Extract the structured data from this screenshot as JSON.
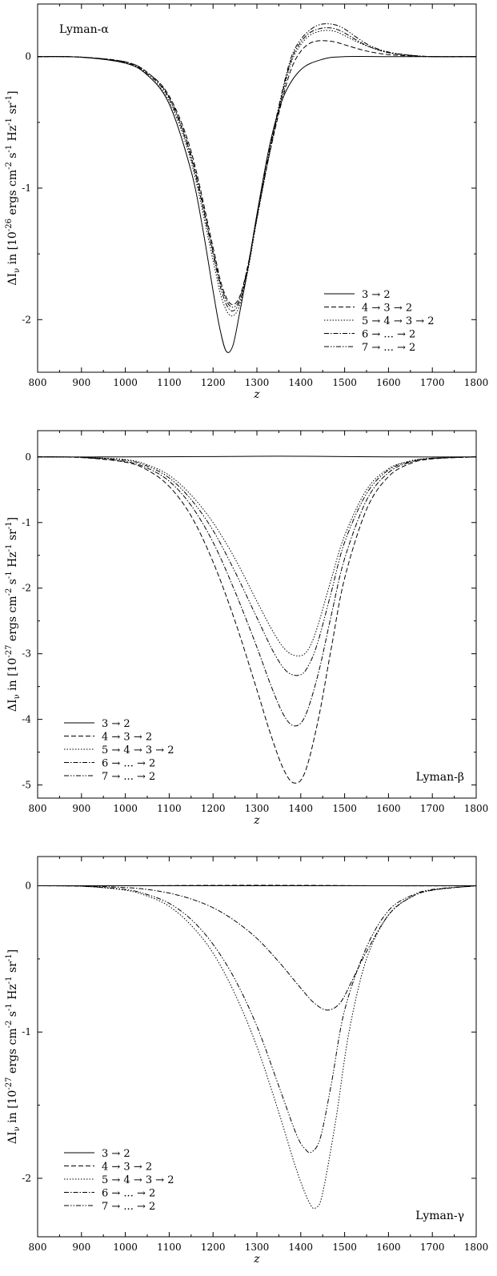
{
  "figure": {
    "background": "#ffffff",
    "ink": "#000000"
  },
  "chart_data": [
    {
      "type": "line",
      "title": "",
      "panel_label": "Lyman-α",
      "xlabel": "z",
      "ylabel": "ΔI_ν in [10^-26 ergs cm^-2 s^-1 Hz^-1 sr^-1]",
      "ylabel_parts": {
        "pre": "ΔI",
        "sub": "ν",
        "mid": " in [10",
        "exp": "-26",
        "units": " ergs cm",
        "e1": "-2",
        "s": " s",
        "e2": "-1",
        "hz": " Hz",
        "e3": "-1",
        "sr": " sr",
        "e4": "-1",
        "close": "]"
      },
      "xlim": [
        800,
        1800
      ],
      "ylim": [
        -2.4,
        0.4
      ],
      "xticks": [
        "800",
        "900",
        "1000",
        "1100",
        "1200",
        "1300",
        "1400",
        "1500",
        "1600",
        "1700",
        "1800"
      ],
      "yticks": [
        "0",
        "-1",
        "-2"
      ],
      "ytick_values": [
        0,
        -1,
        -2
      ],
      "legend_position": "bottom-right",
      "grid": false,
      "series": [
        {
          "name": "3 → 2",
          "x": [
            800,
            900,
            1000,
            1050,
            1100,
            1150,
            1175,
            1200,
            1215,
            1230,
            1245,
            1260,
            1280,
            1300,
            1330,
            1360,
            1400,
            1450,
            1500,
            1600,
            1700,
            1800
          ],
          "y": [
            0,
            -0.005,
            -0.05,
            -0.14,
            -0.36,
            -0.87,
            -1.28,
            -1.78,
            -2.06,
            -2.24,
            -2.2,
            -1.96,
            -1.6,
            -1.2,
            -0.66,
            -0.31,
            -0.1,
            -0.02,
            0,
            0,
            0,
            0
          ]
        },
        {
          "name": "4 → 3 → 2",
          "x": [
            800,
            900,
            1000,
            1050,
            1100,
            1150,
            1200,
            1220,
            1240,
            1260,
            1280,
            1300,
            1330,
            1360,
            1380,
            1400,
            1420,
            1440,
            1460,
            1480,
            1500,
            1530,
            1560,
            1600,
            1650,
            1700,
            1800
          ],
          "y": [
            0,
            -0.004,
            -0.04,
            -0.12,
            -0.3,
            -0.72,
            -1.45,
            -1.74,
            -1.88,
            -1.83,
            -1.58,
            -1.22,
            -0.72,
            -0.3,
            -0.08,
            0.04,
            0.1,
            0.12,
            0.12,
            0.11,
            0.09,
            0.06,
            0.035,
            0.015,
            0.005,
            0,
            0
          ]
        },
        {
          "name": "5 → 4 → 3 → 2",
          "x": [
            800,
            900,
            1000,
            1050,
            1100,
            1150,
            1200,
            1220,
            1240,
            1260,
            1280,
            1300,
            1330,
            1360,
            1380,
            1400,
            1420,
            1440,
            1460,
            1480,
            1500,
            1530,
            1560,
            1600,
            1650,
            1700,
            1800
          ],
          "y": [
            0,
            -0.005,
            -0.05,
            -0.14,
            -0.34,
            -0.8,
            -1.55,
            -1.84,
            -1.97,
            -1.9,
            -1.62,
            -1.24,
            -0.72,
            -0.27,
            -0.03,
            0.09,
            0.16,
            0.19,
            0.2,
            0.19,
            0.16,
            0.11,
            0.07,
            0.03,
            0.01,
            0,
            0
          ]
        },
        {
          "name": "6 → ... → 2",
          "x": [
            800,
            900,
            1000,
            1050,
            1100,
            1150,
            1200,
            1220,
            1240,
            1260,
            1280,
            1300,
            1330,
            1360,
            1380,
            1400,
            1420,
            1440,
            1460,
            1480,
            1500,
            1530,
            1560,
            1600,
            1650,
            1700,
            1800
          ],
          "y": [
            0,
            -0.004,
            -0.045,
            -0.13,
            -0.32,
            -0.77,
            -1.5,
            -1.79,
            -1.93,
            -1.87,
            -1.6,
            -1.23,
            -0.71,
            -0.25,
            -0.01,
            0.11,
            0.18,
            0.21,
            0.22,
            0.21,
            0.18,
            0.12,
            0.07,
            0.03,
            0.01,
            0,
            0
          ]
        },
        {
          "name": "7 → ... → 2",
          "x": [
            800,
            900,
            1000,
            1050,
            1100,
            1150,
            1200,
            1220,
            1240,
            1260,
            1280,
            1300,
            1330,
            1360,
            1380,
            1400,
            1420,
            1440,
            1460,
            1480,
            1500,
            1530,
            1560,
            1600,
            1650,
            1700,
            1800
          ],
          "y": [
            0,
            -0.004,
            -0.04,
            -0.12,
            -0.31,
            -0.75,
            -1.48,
            -1.76,
            -1.9,
            -1.85,
            -1.58,
            -1.21,
            -0.69,
            -0.23,
            0.01,
            0.13,
            0.2,
            0.24,
            0.25,
            0.24,
            0.21,
            0.14,
            0.08,
            0.035,
            0.01,
            0,
            0
          ]
        }
      ]
    },
    {
      "type": "line",
      "title": "",
      "panel_label": "Lyman-β",
      "xlabel": "z",
      "ylabel": "ΔI_ν in [10^-27 ergs cm^-2 s^-1 Hz^-1 sr^-1]",
      "ylabel_parts": {
        "pre": "ΔI",
        "sub": "ν",
        "mid": " in [10",
        "exp": "-27",
        "units": " ergs cm",
        "e1": "-2",
        "s": " s",
        "e2": "-1",
        "hz": " Hz",
        "e3": "-1",
        "sr": " sr",
        "e4": "-1",
        "close": "]"
      },
      "xlim": [
        800,
        1800
      ],
      "ylim": [
        -5.2,
        0.4
      ],
      "xticks": [
        "800",
        "900",
        "1000",
        "1100",
        "1200",
        "1300",
        "1400",
        "1500",
        "1600",
        "1700",
        "1800"
      ],
      "yticks": [
        "0",
        "-1",
        "-2",
        "-3",
        "-4",
        "-5"
      ],
      "ytick_values": [
        0,
        -1,
        -2,
        -3,
        -4,
        -5
      ],
      "legend_position": "bottom-left",
      "grid": false,
      "series": [
        {
          "name": "3 → 2",
          "x": [
            800,
            1000,
            1200,
            1300,
            1400,
            1500,
            1600,
            1800
          ],
          "y": [
            0,
            0,
            0.005,
            0.01,
            0.01,
            0.005,
            0,
            0
          ]
        },
        {
          "name": "4 → 3 → 2",
          "x": [
            800,
            900,
            1000,
            1050,
            1100,
            1150,
            1200,
            1250,
            1300,
            1330,
            1360,
            1385,
            1410,
            1440,
            1470,
            1500,
            1550,
            1600,
            1650,
            1700,
            1800
          ],
          "y": [
            0,
            -0.01,
            -0.08,
            -0.2,
            -0.45,
            -0.9,
            -1.6,
            -2.5,
            -3.55,
            -4.2,
            -4.75,
            -4.97,
            -4.8,
            -4.0,
            -2.9,
            -1.85,
            -0.8,
            -0.3,
            -0.1,
            -0.03,
            0
          ]
        },
        {
          "name": "5 → 4 → 3 → 2",
          "x": [
            800,
            900,
            1000,
            1050,
            1100,
            1150,
            1200,
            1250,
            1300,
            1340,
            1370,
            1400,
            1420,
            1440,
            1470,
            1500,
            1550,
            1600,
            1650,
            1700,
            1800
          ],
          "y": [
            0,
            -0.005,
            -0.04,
            -0.12,
            -0.28,
            -0.58,
            -1.0,
            -1.55,
            -2.2,
            -2.7,
            -2.97,
            -3.03,
            -2.9,
            -2.55,
            -1.85,
            -1.2,
            -0.5,
            -0.18,
            -0.06,
            -0.02,
            0
          ]
        },
        {
          "name": "6 → ... → 2",
          "x": [
            800,
            900,
            1000,
            1050,
            1100,
            1150,
            1200,
            1250,
            1300,
            1330,
            1360,
            1385,
            1410,
            1440,
            1470,
            1500,
            1550,
            1600,
            1650,
            1700,
            1800
          ],
          "y": [
            0,
            -0.008,
            -0.07,
            -0.17,
            -0.37,
            -0.74,
            -1.3,
            -2.05,
            -2.9,
            -3.45,
            -3.92,
            -4.1,
            -3.95,
            -3.3,
            -2.4,
            -1.55,
            -0.66,
            -0.24,
            -0.08,
            -0.025,
            0
          ]
        },
        {
          "name": "7 → ... → 2",
          "x": [
            800,
            900,
            1000,
            1050,
            1100,
            1150,
            1200,
            1250,
            1300,
            1340,
            1370,
            1400,
            1420,
            1440,
            1470,
            1500,
            1550,
            1600,
            1650,
            1700,
            1800
          ],
          "y": [
            0,
            -0.006,
            -0.05,
            -0.14,
            -0.32,
            -0.65,
            -1.12,
            -1.75,
            -2.45,
            -3.0,
            -3.28,
            -3.32,
            -3.15,
            -2.8,
            -2.05,
            -1.3,
            -0.56,
            -0.2,
            -0.07,
            -0.02,
            0
          ]
        }
      ]
    },
    {
      "type": "line",
      "title": "",
      "panel_label": "Lyman-γ",
      "xlabel": "z",
      "ylabel": "ΔI_ν in [10^-27 ergs cm^-2 s^-1 Hz^-1 sr^-1]",
      "ylabel_parts": {
        "pre": "ΔI",
        "sub": "ν",
        "mid": " in [10",
        "exp": "-27",
        "units": " ergs cm",
        "e1": "-2",
        "s": " s",
        "e2": "-1",
        "hz": " Hz",
        "e3": "-1",
        "sr": " sr",
        "e4": "-1",
        "close": "]"
      },
      "xlim": [
        800,
        1800
      ],
      "ylim": [
        -2.4,
        0.2
      ],
      "xticks": [
        "800",
        "900",
        "1000",
        "1100",
        "1200",
        "1300",
        "1400",
        "1500",
        "1600",
        "1700",
        "1800"
      ],
      "yticks": [
        "0",
        "-1",
        "-2"
      ],
      "ytick_values": [
        0,
        -1,
        -2
      ],
      "legend_position": "bottom-left",
      "grid": false,
      "series": [
        {
          "name": "3 → 2",
          "x": [
            800,
            1000,
            1400,
            1800
          ],
          "y": [
            0,
            0,
            0,
            0
          ]
        },
        {
          "name": "4 → 3 → 2",
          "x": [
            800,
            1000,
            1200,
            1400,
            1600,
            1800
          ],
          "y": [
            0,
            0,
            0.003,
            0.003,
            0,
            0
          ]
        },
        {
          "name": "5 → 4 → 3 → 2",
          "x": [
            800,
            900,
            1000,
            1050,
            1100,
            1150,
            1200,
            1250,
            1300,
            1350,
            1390,
            1420,
            1435,
            1450,
            1480,
            1510,
            1550,
            1600,
            1650,
            1700,
            1800
          ],
          "y": [
            0,
            -0.003,
            -0.03,
            -0.07,
            -0.14,
            -0.27,
            -0.46,
            -0.74,
            -1.1,
            -1.55,
            -1.94,
            -2.17,
            -2.2,
            -2.1,
            -1.6,
            -1.0,
            -0.5,
            -0.2,
            -0.08,
            -0.03,
            0
          ]
        },
        {
          "name": "6 → ... → 2",
          "x": [
            800,
            900,
            1000,
            1050,
            1100,
            1150,
            1200,
            1250,
            1300,
            1350,
            1400,
            1430,
            1460,
            1490,
            1520,
            1550,
            1600,
            1650,
            1700,
            1800
          ],
          "y": [
            0,
            -0.002,
            -0.012,
            -0.025,
            -0.05,
            -0.09,
            -0.15,
            -0.24,
            -0.36,
            -0.52,
            -0.7,
            -0.8,
            -0.85,
            -0.8,
            -0.63,
            -0.45,
            -0.2,
            -0.08,
            -0.03,
            0
          ]
        },
        {
          "name": "7 → ... → 2",
          "x": [
            800,
            900,
            1000,
            1050,
            1100,
            1150,
            1200,
            1250,
            1300,
            1350,
            1390,
            1410,
            1425,
            1445,
            1470,
            1500,
            1550,
            1600,
            1650,
            1700,
            1800
          ],
          "y": [
            0,
            -0.003,
            -0.025,
            -0.06,
            -0.12,
            -0.23,
            -0.4,
            -0.64,
            -0.96,
            -1.37,
            -1.7,
            -1.8,
            -1.82,
            -1.72,
            -1.35,
            -0.85,
            -0.42,
            -0.17,
            -0.07,
            -0.025,
            0
          ]
        }
      ]
    }
  ]
}
